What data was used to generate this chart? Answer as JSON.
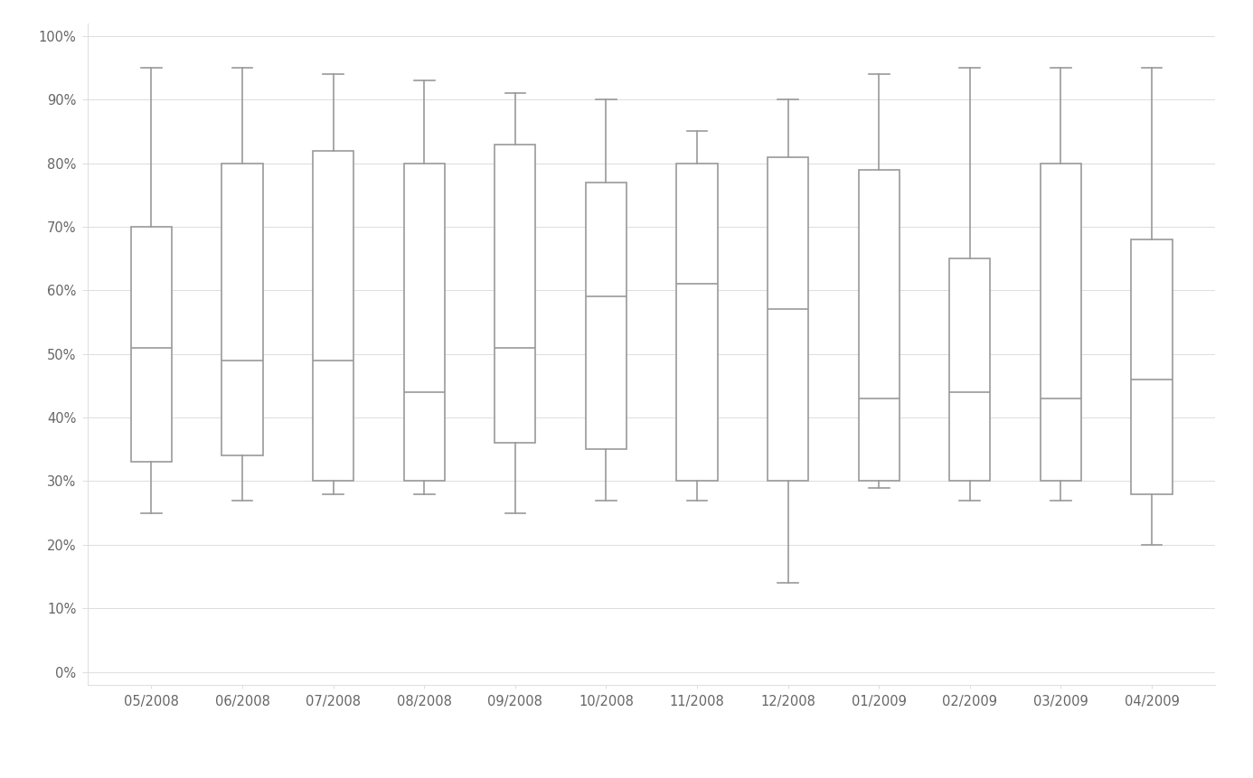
{
  "labels": [
    "05/2008",
    "06/2008",
    "07/2008",
    "08/2008",
    "09/2008",
    "10/2008",
    "11/2008",
    "12/2008",
    "01/2009",
    "02/2009",
    "03/2009",
    "04/2009"
  ],
  "boxes": [
    {
      "whislo": 25,
      "q1": 33,
      "med": 51,
      "q3": 70,
      "whishi": 95
    },
    {
      "whislo": 27,
      "q1": 34,
      "med": 49,
      "q3": 80,
      "whishi": 95
    },
    {
      "whislo": 28,
      "q1": 30,
      "med": 49,
      "q3": 82,
      "whishi": 94
    },
    {
      "whislo": 28,
      "q1": 30,
      "med": 44,
      "q3": 80,
      "whishi": 93
    },
    {
      "whislo": 25,
      "q1": 36,
      "med": 51,
      "q3": 83,
      "whishi": 91
    },
    {
      "whislo": 27,
      "q1": 35,
      "med": 59,
      "q3": 77,
      "whishi": 90
    },
    {
      "whislo": 27,
      "q1": 30,
      "med": 61,
      "q3": 80,
      "whishi": 85
    },
    {
      "whislo": 14,
      "q1": 30,
      "med": 57,
      "q3": 81,
      "whishi": 90
    },
    {
      "whislo": 29,
      "q1": 30,
      "med": 43,
      "q3": 79,
      "whishi": 94
    },
    {
      "whislo": 27,
      "q1": 30,
      "med": 44,
      "q3": 65,
      "whishi": 95
    },
    {
      "whislo": 27,
      "q1": 30,
      "med": 43,
      "q3": 80,
      "whishi": 95
    },
    {
      "whislo": 20,
      "q1": 28,
      "med": 46,
      "q3": 68,
      "whishi": 95
    }
  ],
  "ylim": [
    -2,
    102
  ],
  "yticks": [
    0,
    10,
    20,
    30,
    40,
    50,
    60,
    70,
    80,
    90,
    100
  ],
  "ytick_labels": [
    "0%",
    "10%",
    "20%",
    "30%",
    "40%",
    "50%",
    "60%",
    "70%",
    "80%",
    "90%",
    "100%"
  ],
  "box_color": "#ffffff",
  "box_edge_color": "#999999",
  "whisker_color": "#999999",
  "median_color": "#999999",
  "cap_color": "#999999",
  "background_color": "#ffffff",
  "grid_color": "#dddddd",
  "tick_label_color": "#666666",
  "box_width": 0.45,
  "line_width": 1.2,
  "figsize": [
    13.86,
    8.61
  ],
  "dpi": 100
}
